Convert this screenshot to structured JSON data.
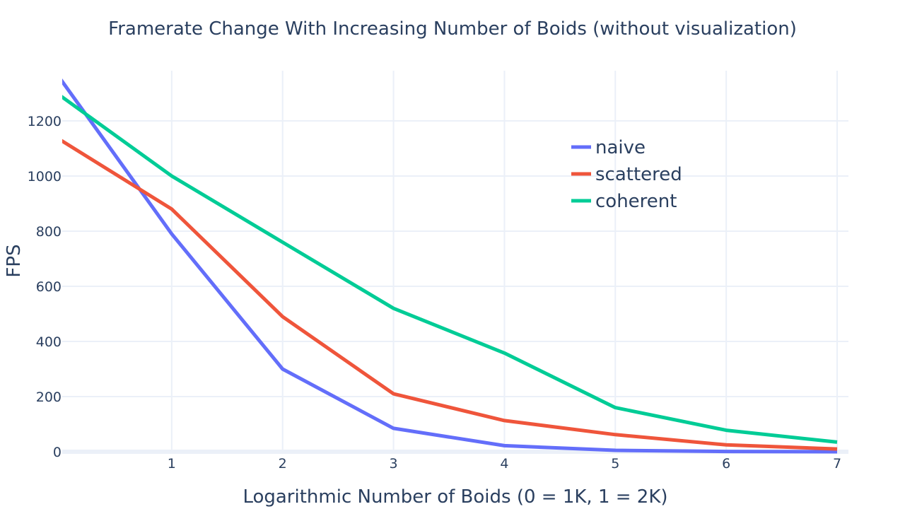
{
  "chart_data": {
    "type": "line",
    "title": "Framerate Change With Increasing Number of Boids (without visualization)",
    "xlabel": "Logarithmic Number of Boids (0 = 1K, 1 = 2K)",
    "ylabel": "FPS",
    "x": [
      0,
      1,
      2,
      3,
      4,
      5,
      6,
      7
    ],
    "xlim": [
      0,
      7
    ],
    "ylim": [
      0,
      1370
    ],
    "x_ticks": [
      1,
      2,
      3,
      4,
      5,
      6,
      7
    ],
    "y_ticks": [
      0,
      200,
      400,
      600,
      800,
      1000,
      1200
    ],
    "grid": true,
    "legend_position": "top-right",
    "series": [
      {
        "name": "naive",
        "color": "#636efa",
        "values": [
          1350,
          790,
          300,
          85,
          22,
          5,
          1,
          0
        ]
      },
      {
        "name": "scattered",
        "color": "#ef553b",
        "values": [
          1130,
          880,
          490,
          210,
          113,
          62,
          25,
          10
        ]
      },
      {
        "name": "coherent",
        "color": "#00cc96",
        "values": [
          1290,
          1000,
          760,
          520,
          358,
          160,
          78,
          35
        ]
      }
    ]
  }
}
